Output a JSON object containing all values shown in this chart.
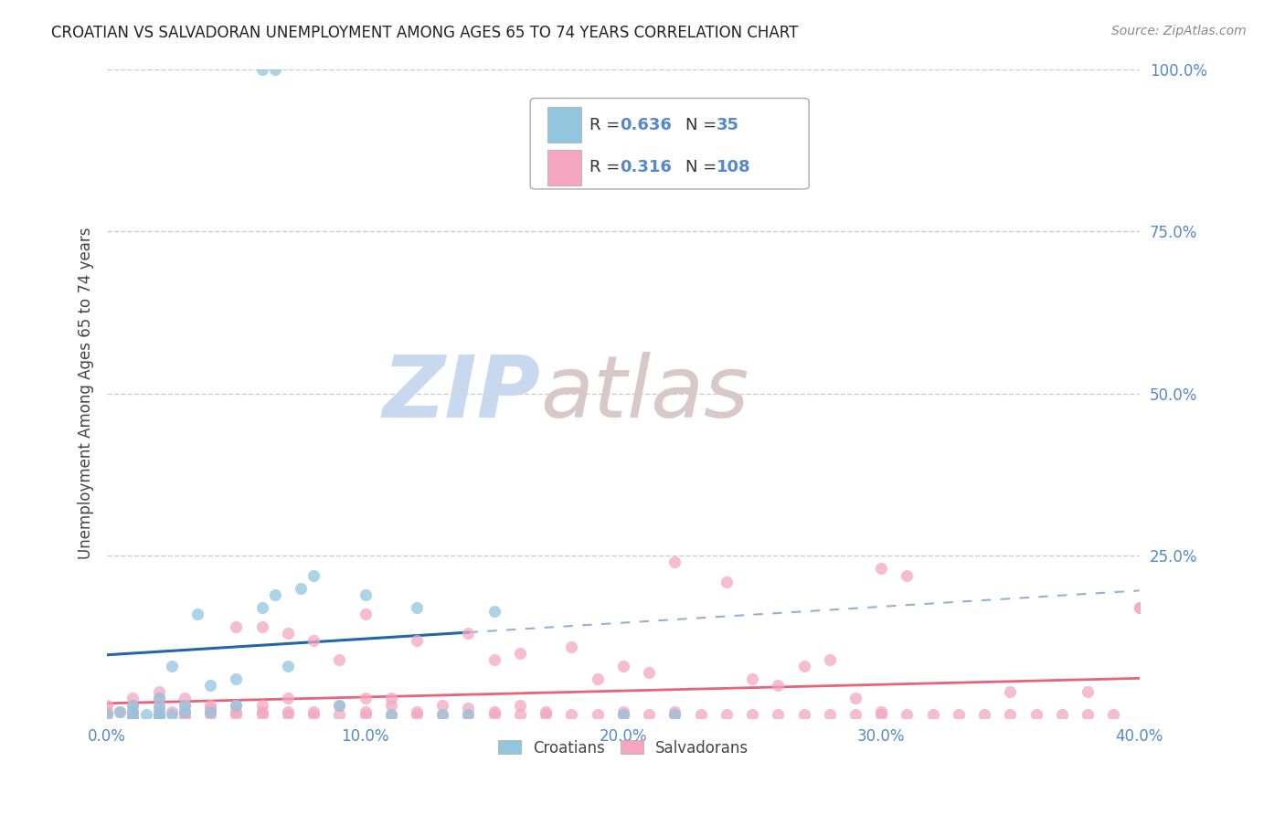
{
  "title": "CROATIAN VS SALVADORAN UNEMPLOYMENT AMONG AGES 65 TO 74 YEARS CORRELATION CHART",
  "source": "Source: ZipAtlas.com",
  "ylabel": "Unemployment Among Ages 65 to 74 years",
  "xlim": [
    0.0,
    0.4
  ],
  "ylim": [
    0.0,
    1.0
  ],
  "xticks": [
    0.0,
    0.1,
    0.2,
    0.3,
    0.4
  ],
  "xticklabels": [
    "0.0%",
    "10.0%",
    "20.0%",
    "30.0%",
    "40.0%"
  ],
  "yticks": [
    0.0,
    0.25,
    0.5,
    0.75,
    1.0
  ],
  "yticklabels": [
    "",
    "25.0%",
    "50.0%",
    "75.0%",
    "100.0%"
  ],
  "croatian_R": 0.636,
  "croatian_N": 35,
  "salvadoran_R": 0.316,
  "salvadoran_N": 108,
  "croatian_color": "#92c5de",
  "salvadoran_color": "#f4a6c0",
  "croatian_line_color": "#2166ac",
  "salvadoran_line_color": "#e8627a",
  "croatian_scatter_x": [
    0.0,
    0.005,
    0.01,
    0.01,
    0.01,
    0.015,
    0.02,
    0.02,
    0.02,
    0.02,
    0.025,
    0.025,
    0.03,
    0.03,
    0.035,
    0.04,
    0.04,
    0.05,
    0.05,
    0.06,
    0.065,
    0.07,
    0.075,
    0.08,
    0.09,
    0.1,
    0.11,
    0.12,
    0.13,
    0.14,
    0.15,
    0.06,
    0.065,
    0.2,
    0.22
  ],
  "croatian_scatter_y": [
    0.005,
    0.01,
    0.0,
    0.01,
    0.02,
    0.005,
    0.0,
    0.005,
    0.015,
    0.03,
    0.005,
    0.08,
    0.01,
    0.02,
    0.16,
    0.01,
    0.05,
    0.02,
    0.06,
    0.17,
    0.19,
    0.08,
    0.2,
    0.22,
    0.02,
    0.19,
    0.005,
    0.17,
    0.005,
    0.005,
    0.165,
    1.0,
    1.0,
    0.005,
    0.005
  ],
  "salvadoran_scatter_x": [
    0.0,
    0.0,
    0.0,
    0.005,
    0.01,
    0.01,
    0.01,
    0.01,
    0.01,
    0.02,
    0.02,
    0.02,
    0.02,
    0.02,
    0.02,
    0.025,
    0.03,
    0.03,
    0.03,
    0.03,
    0.03,
    0.04,
    0.04,
    0.04,
    0.04,
    0.05,
    0.05,
    0.05,
    0.05,
    0.06,
    0.06,
    0.06,
    0.07,
    0.07,
    0.07,
    0.08,
    0.08,
    0.09,
    0.09,
    0.1,
    0.1,
    0.1,
    0.11,
    0.11,
    0.12,
    0.12,
    0.13,
    0.13,
    0.14,
    0.14,
    0.15,
    0.15,
    0.16,
    0.16,
    0.17,
    0.17,
    0.18,
    0.19,
    0.2,
    0.2,
    0.21,
    0.22,
    0.22,
    0.23,
    0.24,
    0.25,
    0.26,
    0.27,
    0.28,
    0.29,
    0.3,
    0.3,
    0.31,
    0.32,
    0.33,
    0.34,
    0.35,
    0.36,
    0.37,
    0.38,
    0.39,
    0.4,
    0.22,
    0.24,
    0.3,
    0.31,
    0.12,
    0.14,
    0.2,
    0.21,
    0.15,
    0.16,
    0.18,
    0.19,
    0.25,
    0.26,
    0.35,
    0.38,
    0.4,
    0.29,
    0.1,
    0.11,
    0.06,
    0.07,
    0.08,
    0.09,
    0.27,
    0.28
  ],
  "salvadoran_scatter_y": [
    0.01,
    0.02,
    0.005,
    0.01,
    0.0,
    0.01,
    0.02,
    0.005,
    0.03,
    0.005,
    0.01,
    0.02,
    0.03,
    0.04,
    0.005,
    0.01,
    0.0,
    0.01,
    0.02,
    0.03,
    0.005,
    0.005,
    0.01,
    0.02,
    0.015,
    0.005,
    0.01,
    0.02,
    0.14,
    0.005,
    0.01,
    0.02,
    0.005,
    0.01,
    0.03,
    0.005,
    0.01,
    0.005,
    0.02,
    0.005,
    0.01,
    0.16,
    0.005,
    0.02,
    0.005,
    0.01,
    0.005,
    0.02,
    0.005,
    0.015,
    0.005,
    0.01,
    0.005,
    0.02,
    0.005,
    0.01,
    0.005,
    0.005,
    0.005,
    0.01,
    0.005,
    0.005,
    0.01,
    0.005,
    0.005,
    0.005,
    0.005,
    0.005,
    0.005,
    0.005,
    0.005,
    0.01,
    0.005,
    0.005,
    0.005,
    0.005,
    0.005,
    0.005,
    0.005,
    0.005,
    0.005,
    0.17,
    0.24,
    0.21,
    0.23,
    0.22,
    0.12,
    0.13,
    0.08,
    0.07,
    0.09,
    0.1,
    0.11,
    0.06,
    0.06,
    0.05,
    0.04,
    0.04,
    0.17,
    0.03,
    0.03,
    0.03,
    0.14,
    0.13,
    0.12,
    0.09,
    0.08,
    0.09
  ],
  "background_color": "#ffffff",
  "grid_color": "#cccccc",
  "watermark_zip_color": "#c8d8ee",
  "watermark_atlas_color": "#d8c8c8",
  "title_color": "#222222",
  "axis_label_color": "#444444",
  "tick_color": "#5588cc",
  "croatian_legend_label": "Croatians",
  "salvadoran_legend_label": "Salvadorans"
}
